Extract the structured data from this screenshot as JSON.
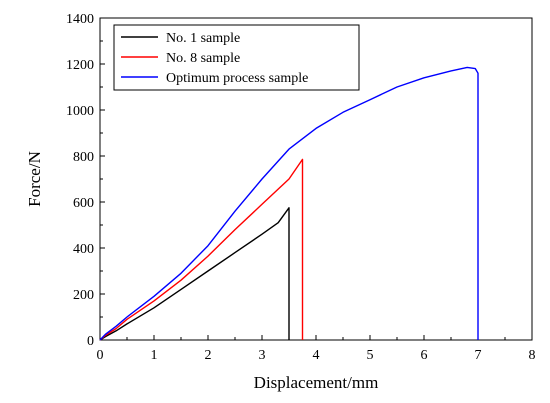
{
  "chart_data": {
    "type": "line",
    "title": "",
    "xlabel": "Displacement/mm",
    "ylabel": "Force/N",
    "xlim": [
      0,
      8
    ],
    "ylim": [
      0,
      1400
    ],
    "xticks": [
      0,
      1,
      2,
      3,
      4,
      5,
      6,
      7,
      8
    ],
    "yticks": [
      0,
      200,
      400,
      600,
      800,
      1000,
      1200,
      1400
    ],
    "grid": false,
    "legend_position": "top-left",
    "series": [
      {
        "name": "No. 1 sample",
        "color": "#000000",
        "x": [
          0,
          0.1,
          0.3,
          0.5,
          1.0,
          1.5,
          2.0,
          2.5,
          3.0,
          3.3,
          3.5,
          3.5
        ],
        "y": [
          0,
          15,
          40,
          70,
          140,
          220,
          300,
          380,
          460,
          510,
          575,
          0
        ]
      },
      {
        "name": "No. 8 sample",
        "color": "#ff0000",
        "x": [
          0,
          0.1,
          0.3,
          0.5,
          1.0,
          1.5,
          2.0,
          2.5,
          3.0,
          3.5,
          3.75,
          3.75
        ],
        "y": [
          0,
          20,
          50,
          90,
          170,
          260,
          365,
          480,
          590,
          700,
          785,
          0
        ]
      },
      {
        "name": "Optimum process sample",
        "color": "#0000ff",
        "x": [
          0,
          0.1,
          0.3,
          0.5,
          1.0,
          1.5,
          2.0,
          2.5,
          3.0,
          3.5,
          4.0,
          4.5,
          5.0,
          5.5,
          6.0,
          6.5,
          6.8,
          6.95,
          7.0,
          7.0
        ],
        "y": [
          0,
          25,
          60,
          100,
          190,
          290,
          410,
          560,
          700,
          830,
          920,
          990,
          1045,
          1100,
          1140,
          1170,
          1185,
          1180,
          1160,
          0
        ]
      }
    ]
  }
}
